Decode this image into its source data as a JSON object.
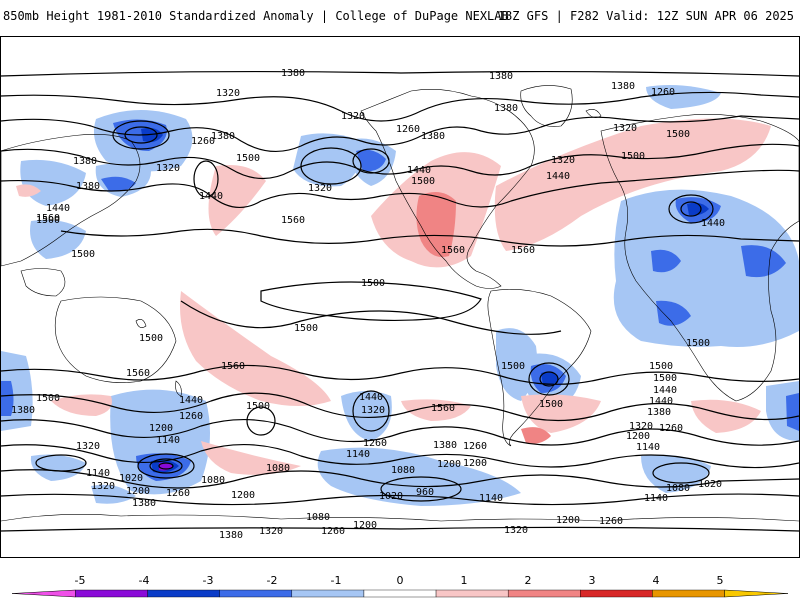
{
  "header": {
    "title": "850mb Height 1981-2010 Standardized Anomaly | College of DuPage NEXLAB",
    "run_info": "18Z GFS | F282 Valid: 12Z SUN APR 06 2025"
  },
  "colorbar": {
    "ticks": [
      "-5",
      "-4",
      "-3",
      "-2",
      "-1",
      "0",
      "1",
      "2",
      "3",
      "4",
      "5"
    ],
    "colors": [
      "#ef4fe8",
      "#8a0ad8",
      "#0a3cc8",
      "#3c6ce8",
      "#a6c6f4",
      "#ffffff",
      "#f8c6c6",
      "#f08484",
      "#d82828",
      "#e89600",
      "#f8c800"
    ]
  },
  "contour_labels": [
    "1380",
    "1320",
    "1380",
    "1260",
    "1380",
    "1320",
    "1380",
    "1260",
    "1320",
    "1500",
    "1260",
    "1380",
    "1320",
    "1500",
    "1440",
    "1380",
    "1440",
    "1500",
    "1560",
    "1320",
    "1560",
    "1320",
    "1440",
    "1380",
    "1440",
    "1500",
    "1560",
    "1560",
    "1440",
    "1500",
    "1500",
    "1500",
    "1560",
    "1500",
    "1560",
    "1500",
    "1500",
    "1560",
    "1500",
    "1500",
    "1440",
    "1440",
    "1320",
    "1260",
    "1200",
    "1140",
    "1080",
    "1320",
    "1140",
    "1080",
    "1020",
    "1320",
    "1260",
    "1200",
    "1380",
    "1200",
    "1260",
    "1140",
    "1080",
    "1020",
    "960",
    "1200",
    "1140",
    "1380",
    "1440",
    "1500",
    "1440",
    "1380",
    "1320",
    "1200",
    "1260",
    "1140",
    "1080",
    "1020",
    "1140",
    "1080",
    "1200",
    "1260",
    "1380",
    "1320",
    "1260",
    "1200",
    "1320",
    "1200",
    "1260",
    "1380",
    "1500",
    "1380",
    "1500",
    "1500"
  ]
}
